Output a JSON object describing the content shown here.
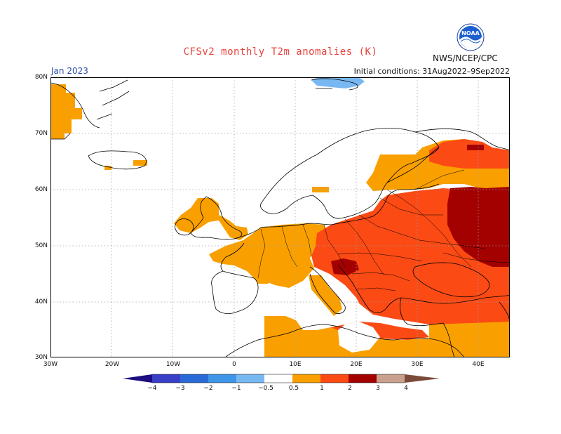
{
  "header": {
    "title": "CFSv2 monthly T2m anomalies (K)",
    "period": "Jan 2023",
    "initial_conditions": "Initial conditions: 31Aug2022–9Sep2022",
    "agency": "NWS/NCEP/CPC",
    "logo_text": "NOAA"
  },
  "map": {
    "projection": "lat-lon",
    "lon_range": [
      -30,
      45
    ],
    "lat_range": [
      30,
      80
    ],
    "gridlines": true,
    "lat_labels": [
      "80N",
      "70N",
      "60N",
      "50N",
      "40N",
      "30N"
    ],
    "lon_labels": [
      "30W",
      "20W",
      "10W",
      "0",
      "10E",
      "20E",
      "30E",
      "40E"
    ]
  },
  "legend": {
    "labels": [
      "−4",
      "−3",
      "−2",
      "−1",
      "−0.5",
      "0.5",
      "1",
      "2",
      "3",
      "4"
    ],
    "colors": {
      "below_-4": "#1c0d80",
      "-4_-3": "#3a3fc8",
      "-3_-2": "#2a6ad6",
      "-2_-1": "#3f95e8",
      "-1_-0.5": "#78b8f2",
      "neutral": "#ffffff",
      "0.5_1": "#f9a000",
      "1_2": "#fb4a14",
      "2_3": "#a30000",
      "3_4": "#c9a08e",
      "above_4": "#7a4b3a"
    }
  }
}
